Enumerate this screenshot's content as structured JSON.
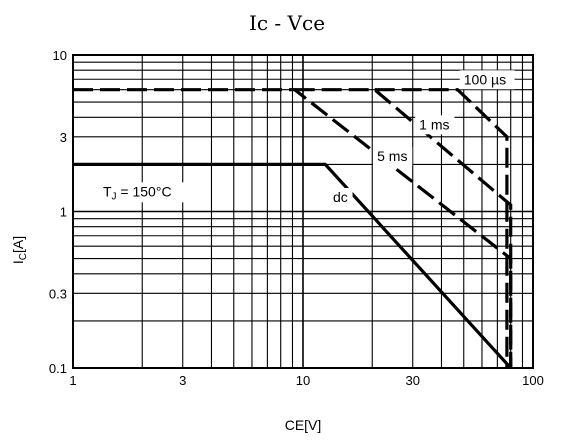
{
  "chart_data": {
    "type": "line",
    "title": "Ic - Vce",
    "xlabel": "CE[V]",
    "ylabel": "IC[A]",
    "x_scale": "log",
    "y_scale": "log",
    "xlim": [
      1,
      100
    ],
    "ylim": [
      0.1,
      10
    ],
    "grid": true,
    "x_ticks": [
      {
        "value": 1,
        "label": "1"
      },
      {
        "value": 3,
        "label": "3"
      },
      {
        "value": 10,
        "label": "10"
      },
      {
        "value": 30,
        "label": "30"
      },
      {
        "value": 100,
        "label": "100"
      }
    ],
    "y_ticks": [
      {
        "value": 0.1,
        "label": "0.1"
      },
      {
        "value": 0.3,
        "label": "0.3"
      },
      {
        "value": 1,
        "label": "1"
      },
      {
        "value": 3,
        "label": "3"
      },
      {
        "value": 10,
        "label": "10"
      }
    ],
    "annotations": [
      {
        "text": "TJ = 150°C",
        "x": 1.35,
        "y": 1.25
      },
      {
        "text": "100 µs",
        "x": 50,
        "y": 6.5
      },
      {
        "text": "1 ms",
        "x": 32,
        "y": 3.35
      },
      {
        "text": "5 ms",
        "x": 21,
        "y": 2.1
      },
      {
        "text": "dc",
        "x": 13.5,
        "y": 1.15
      }
    ],
    "series": [
      {
        "name": "dc",
        "style": "solid",
        "x": [
          1,
          12.5,
          80,
          80
        ],
        "y": [
          2,
          2,
          0.1,
          0.1
        ]
      },
      {
        "name": "5 ms",
        "style": "dashed",
        "x": [
          1,
          9.2,
          80,
          80
        ],
        "y": [
          6,
          6,
          0.5,
          0.1
        ]
      },
      {
        "name": "1 ms",
        "style": "dashed",
        "x": [
          9.2,
          20.5,
          80,
          80
        ],
        "y": [
          6,
          6,
          1.1,
          0.1
        ]
      },
      {
        "name": "100 µs",
        "style": "dashed",
        "x": [
          20.5,
          47,
          77,
          77
        ],
        "y": [
          6,
          6,
          3,
          0.1
        ]
      }
    ]
  }
}
